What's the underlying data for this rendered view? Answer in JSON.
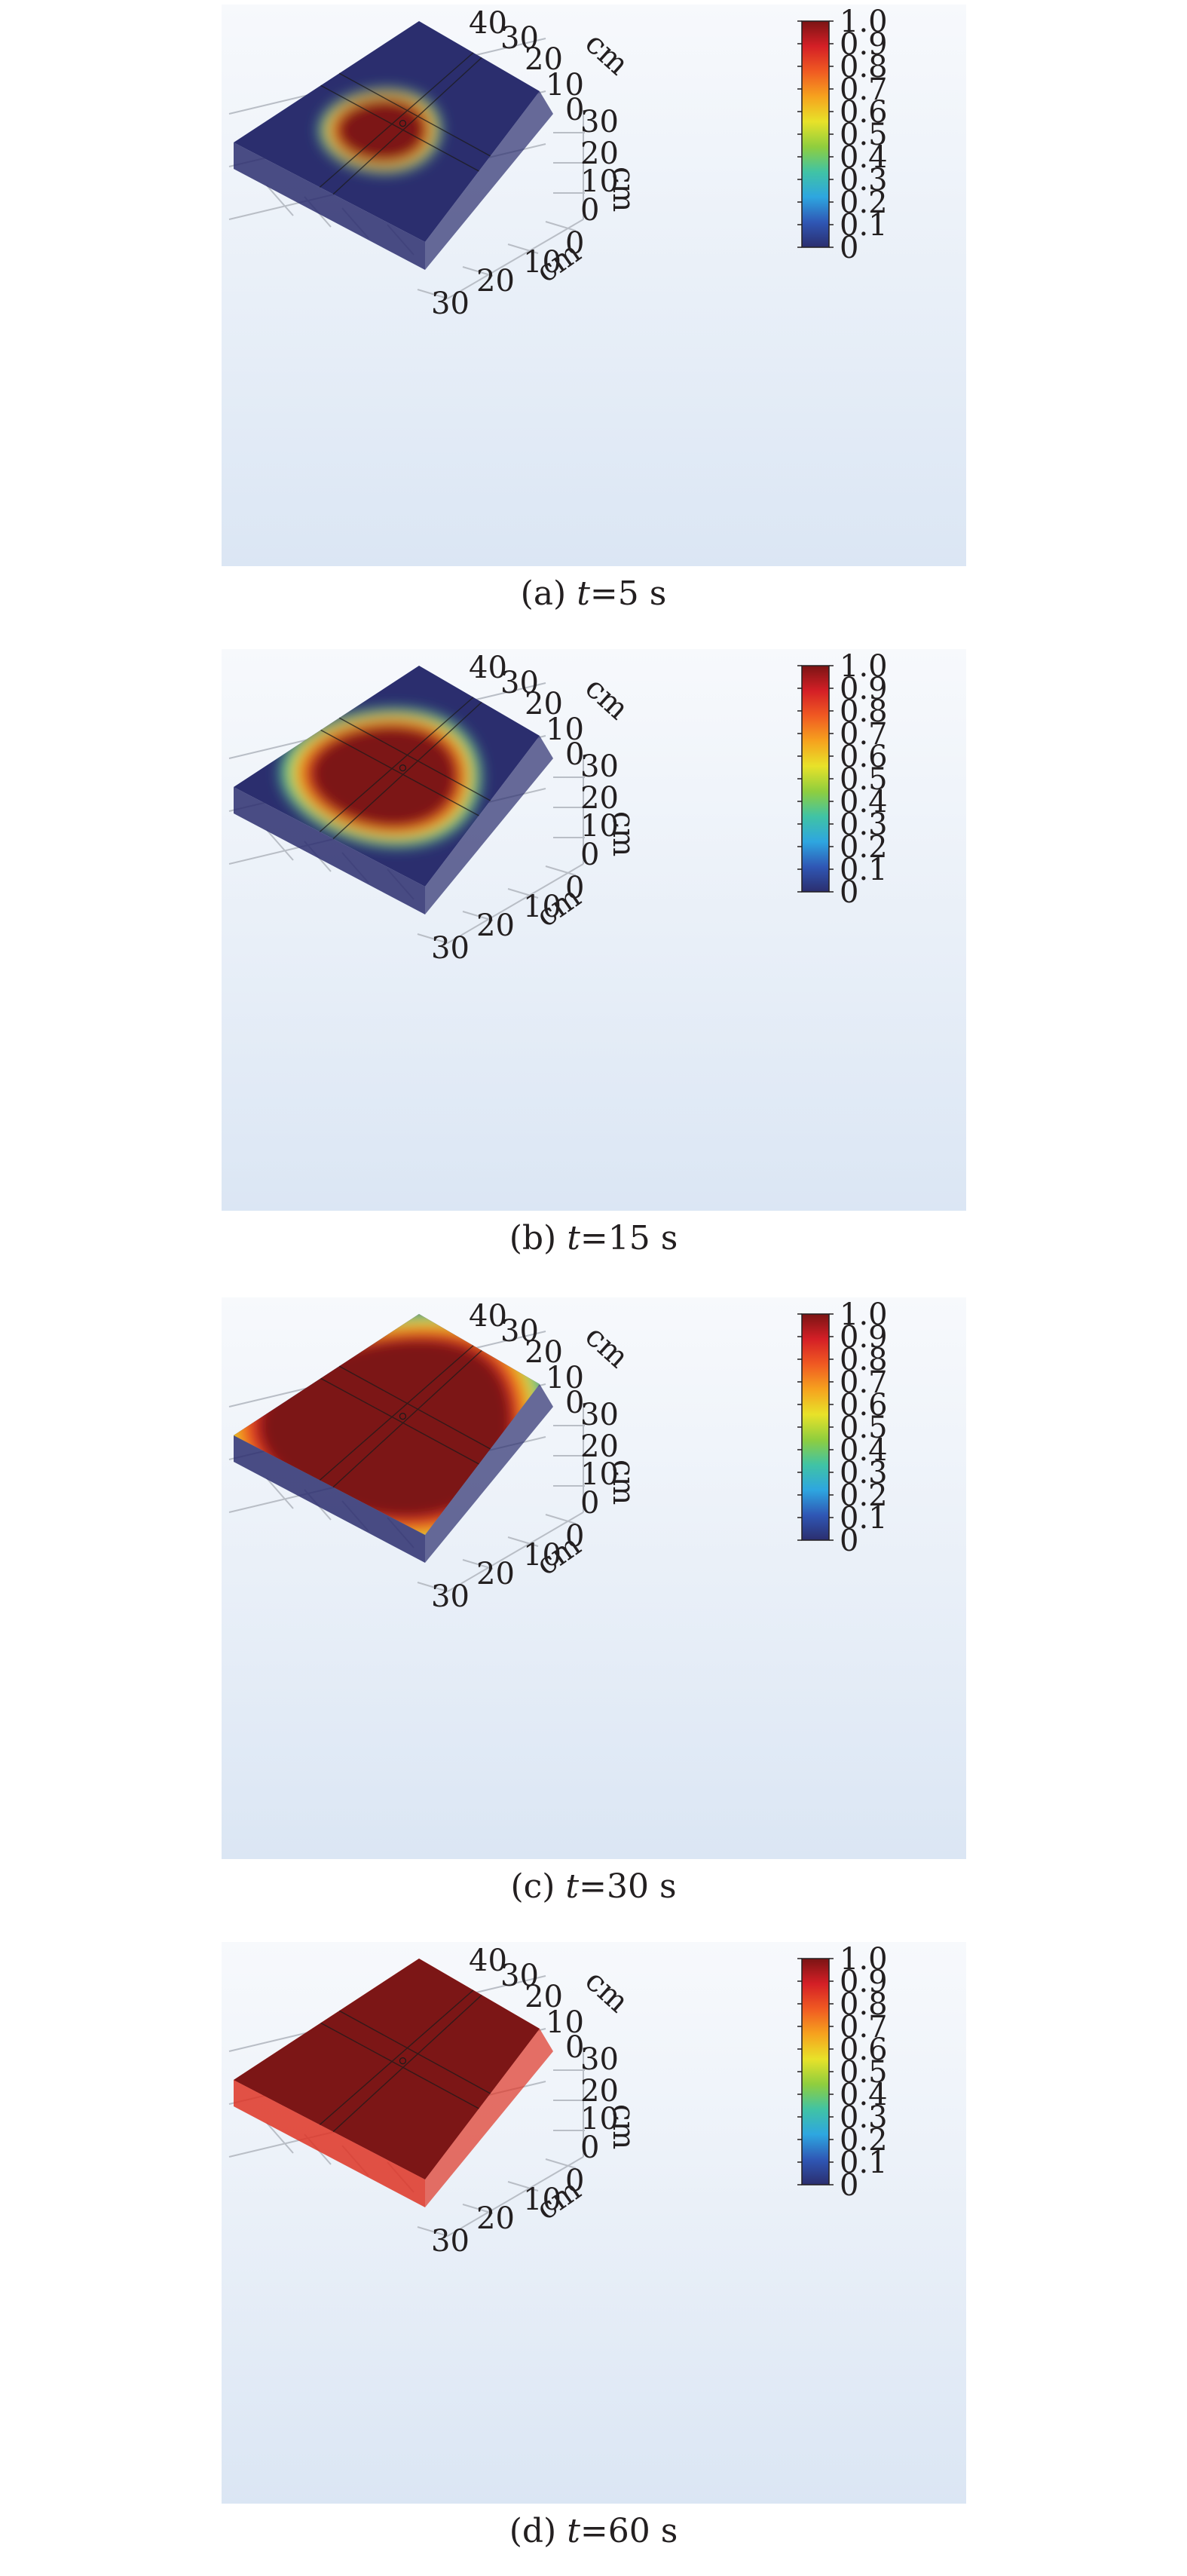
{
  "figure": {
    "panels": [
      {
        "caption_prefix": "(a) ",
        "t_label": "t",
        "t_value": "=5 s"
      },
      {
        "caption_prefix": "(b) ",
        "t_label": "t",
        "t_value": "=15 s"
      },
      {
        "caption_prefix": "(c) ",
        "t_label": "t",
        "t_value": "=30 s"
      },
      {
        "caption_prefix": "(d) ",
        "t_label": "t",
        "t_value": "=60 s"
      }
    ]
  },
  "chart_data": [
    {
      "type": "heatmap",
      "title": "",
      "annotation": "(a) t=5 s",
      "axes": {
        "x": {
          "label": "cm",
          "ticks": [
            "0",
            "10",
            "20",
            "30"
          ]
        },
        "y": {
          "label": "cm",
          "ticks": [
            "40",
            "30",
            "20",
            "10",
            "0"
          ]
        },
        "z": {
          "label": "cm",
          "ticks": [
            "30",
            "20",
            "10",
            "0"
          ]
        }
      },
      "colorbar": {
        "min": 0,
        "max": 1.0,
        "ticks": [
          "1.0",
          "0.9",
          "0.8",
          "0.7",
          "0.6",
          "0.5",
          "0.4",
          "0.3",
          "0.2",
          "0.1",
          "0"
        ],
        "colormap": [
          "#2b2e6e",
          "#2f57b5",
          "#2ea6e0",
          "#40c3a5",
          "#8fce3e",
          "#e8e229",
          "#f6a21e",
          "#f05a22",
          "#d41f26",
          "#7b1414"
        ]
      },
      "field": {
        "blob_cx": 0.42,
        "blob_cy": 0.44,
        "blob_rx": 0.21,
        "blob_ry": 0.25,
        "max_level": 1.0,
        "background_level": 0
      }
    },
    {
      "type": "heatmap",
      "title": "",
      "annotation": "(b) t=15 s",
      "axes": {
        "x": {
          "label": "cm",
          "ticks": [
            "0",
            "10",
            "20",
            "30"
          ]
        },
        "y": {
          "label": "cm",
          "ticks": [
            "40",
            "30",
            "20",
            "10",
            "0"
          ]
        },
        "z": {
          "label": "cm",
          "ticks": [
            "30",
            "20",
            "10",
            "0"
          ]
        }
      },
      "colorbar": {
        "min": 0,
        "max": 1.0,
        "ticks": [
          "1.0",
          "0.9",
          "0.8",
          "0.7",
          "0.6",
          "0.5",
          "0.4",
          "0.3",
          "0.2",
          "0.1",
          "0"
        ],
        "colormap": [
          "#2b2e6e",
          "#2f57b5",
          "#2ea6e0",
          "#40c3a5",
          "#8fce3e",
          "#e8e229",
          "#f6a21e",
          "#f05a22",
          "#d41f26",
          "#7b1414"
        ]
      },
      "field": {
        "blob_cx": 0.43,
        "blob_cy": 0.46,
        "blob_rx": 0.34,
        "blob_ry": 0.42,
        "max_level": 1.0,
        "background_level": 0
      }
    },
    {
      "type": "heatmap",
      "title": "",
      "annotation": "(c) t=30 s",
      "axes": {
        "x": {
          "label": "cm",
          "ticks": [
            "0",
            "10",
            "20",
            "30"
          ]
        },
        "y": {
          "label": "cm",
          "ticks": [
            "40",
            "30",
            "20",
            "10",
            "0"
          ]
        },
        "z": {
          "label": "cm",
          "ticks": [
            "30",
            "20",
            "10",
            "0"
          ]
        }
      },
      "colorbar": {
        "min": 0,
        "max": 1.0,
        "ticks": [
          "1.0",
          "0.9",
          "0.8",
          "0.7",
          "0.6",
          "0.5",
          "0.4",
          "0.3",
          "0.2",
          "0.1",
          "0"
        ],
        "colormap": [
          "#2b2e6e",
          "#2f57b5",
          "#2ea6e0",
          "#40c3a5",
          "#8fce3e",
          "#e8e229",
          "#f6a21e",
          "#f05a22",
          "#d41f26",
          "#7b1414"
        ]
      },
      "field": {
        "blob_cx": 0.45,
        "blob_cy": 0.5,
        "blob_rx": 0.62,
        "blob_ry": 0.72,
        "max_level": 1.0,
        "background_level": 0
      }
    },
    {
      "type": "heatmap",
      "title": "",
      "annotation": "(d) t=60 s",
      "axes": {
        "x": {
          "label": "cm",
          "ticks": [
            "0",
            "10",
            "20",
            "30"
          ]
        },
        "y": {
          "label": "cm",
          "ticks": [
            "40",
            "30",
            "20",
            "10",
            "0"
          ]
        },
        "z": {
          "label": "cm",
          "ticks": [
            "30",
            "20",
            "10",
            "0"
          ]
        }
      },
      "colorbar": {
        "min": 0,
        "max": 1.0,
        "ticks": [
          "1.0",
          "0.9",
          "0.8",
          "0.7",
          "0.6",
          "0.5",
          "0.4",
          "0.3",
          "0.2",
          "0.1",
          "0"
        ],
        "colormap": [
          "#2b2e6e",
          "#2f57b5",
          "#2ea6e0",
          "#40c3a5",
          "#8fce3e",
          "#e8e229",
          "#f6a21e",
          "#f05a22",
          "#d41f26",
          "#7b1414"
        ]
      },
      "field": {
        "blob_cx": 0.5,
        "blob_cy": 0.5,
        "blob_rx": 2.0,
        "blob_ry": 2.0,
        "max_level": 1.0,
        "background_level": 0.85
      }
    }
  ]
}
